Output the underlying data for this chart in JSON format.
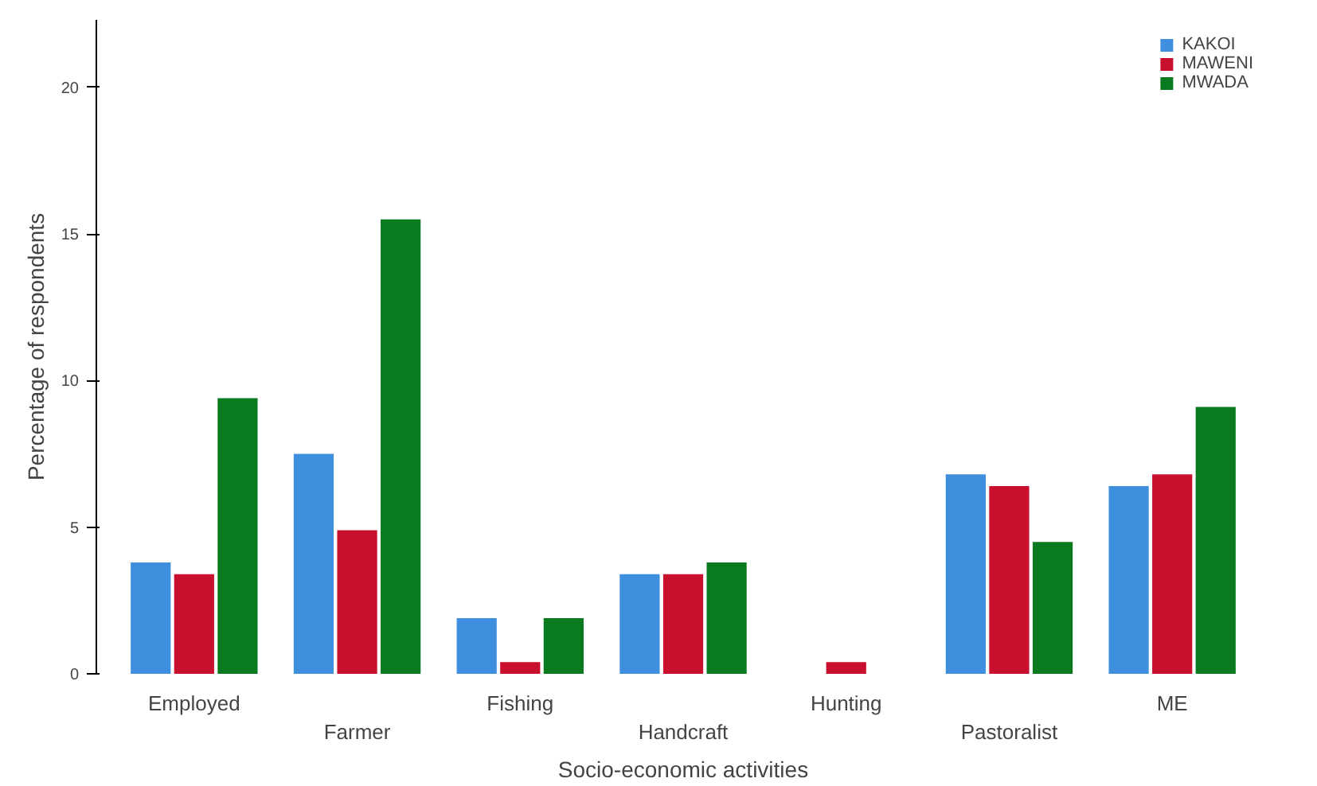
{
  "chart_data": {
    "type": "bar",
    "xlabel": "Socio-economic activities",
    "ylabel": "Percentage of respondents",
    "categories": [
      "Employed",
      "Farmer",
      "Fishing",
      "Handcraft",
      "Hunting",
      "Pastoralist",
      "ME"
    ],
    "series": [
      {
        "name": "KAKOI",
        "color": "#3f8fdf",
        "values": [
          3.8,
          7.5,
          1.9,
          3.4,
          0,
          6.8,
          6.4
        ]
      },
      {
        "name": "MAWENI",
        "color": "#c8102e",
        "values": [
          3.4,
          4.9,
          0.4,
          3.4,
          0.4,
          6.4,
          6.8
        ]
      },
      {
        "name": "MWADA",
        "color": "#0a7a1e",
        "values": [
          9.4,
          15.5,
          1.9,
          3.8,
          0,
          4.5,
          9.1
        ]
      }
    ],
    "ylim": [
      0,
      22.3
    ],
    "yticks": [
      0,
      5,
      10,
      15,
      20
    ],
    "grid": false,
    "legend": "top right"
  }
}
